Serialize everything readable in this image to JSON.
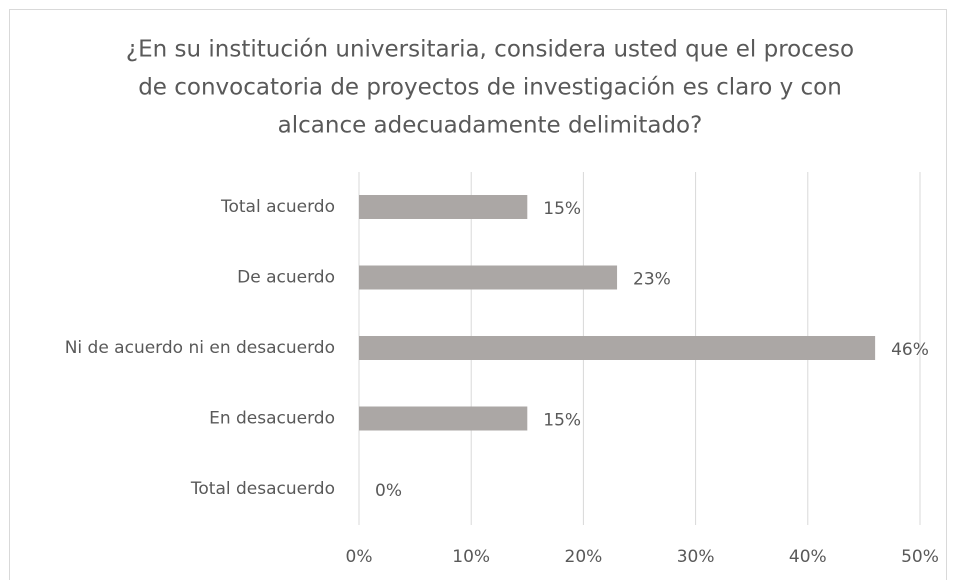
{
  "chart_data": {
    "type": "bar",
    "orientation": "horizontal",
    "title": [
      "¿En su institución universitaria, considera usted que el proceso",
      "de convocatoria de proyectos de investigación es claro y con",
      "alcance adecuadamente delimitado?"
    ],
    "categories": [
      "Total acuerdo",
      "De acuerdo",
      "Ni de acuerdo ni en desacuerdo",
      "En desacuerdo",
      "Total desacuerdo"
    ],
    "values": [
      15,
      23,
      46,
      15,
      0
    ],
    "value_labels": [
      "15%",
      "23%",
      "46%",
      "15%",
      "0%"
    ],
    "color": "#aba7a5",
    "xlim": [
      0,
      50
    ],
    "xticks": [
      {
        "value": 0,
        "label": "0%"
      },
      {
        "value": 10,
        "label": "10%"
      },
      {
        "value": 20,
        "label": "20%"
      },
      {
        "value": 30,
        "label": "30%"
      },
      {
        "value": 40,
        "label": "40%"
      },
      {
        "value": 50,
        "label": "50%"
      }
    ],
    "grid": true
  }
}
